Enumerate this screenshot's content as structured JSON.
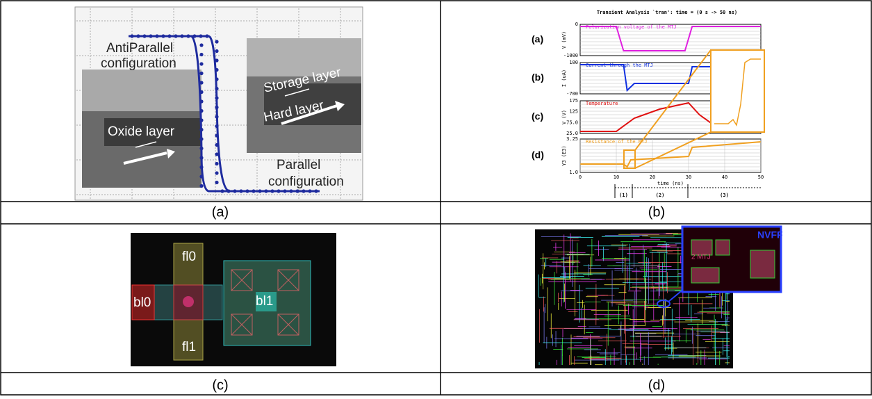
{
  "panel_a": {
    "caption": "(a)",
    "labels": [
      "AntiParallel",
      "configuration",
      "Oxide layer",
      "Storage layer",
      "Hard layer",
      "Parallel",
      "configuration"
    ]
  },
  "panel_b": {
    "caption": "(b)",
    "title": "Transient Analysis `tran': time = (0 s -> 50 ns)",
    "subplots": [
      {
        "tag": "(a)",
        "name": "Polarization voltage of the MTJ",
        "ylabel": "V (mV)",
        "ticks": [
          "0",
          "-1000"
        ]
      },
      {
        "tag": "(b)",
        "name": "Current through the MTJ",
        "ylabel": "I (uA)",
        "ticks": [
          "100",
          "-700"
        ]
      },
      {
        "tag": "(c)",
        "name": "Temperature",
        "ylabel": "V (V)",
        "ticks": [
          "175",
          "125",
          "75.0",
          "25.0"
        ]
      },
      {
        "tag": "(d)",
        "name": "Resistance of the MTJ",
        "ylabel": "Y3 (E3)",
        "ticks": [
          "3.25",
          "1.0"
        ]
      }
    ],
    "xticks": [
      "0",
      "10",
      "20",
      "30",
      "40",
      "50"
    ],
    "xlabel": "time (ns)",
    "phases": [
      "(1)",
      "(2)",
      "(3)"
    ]
  },
  "panel_c": {
    "caption": "(c)",
    "labels": [
      "fl0",
      "bl0",
      "bl1",
      "fl1"
    ]
  },
  "panel_d": {
    "caption": "(d)",
    "labels": [
      "NVFF",
      "2 MTJ"
    ]
  }
}
